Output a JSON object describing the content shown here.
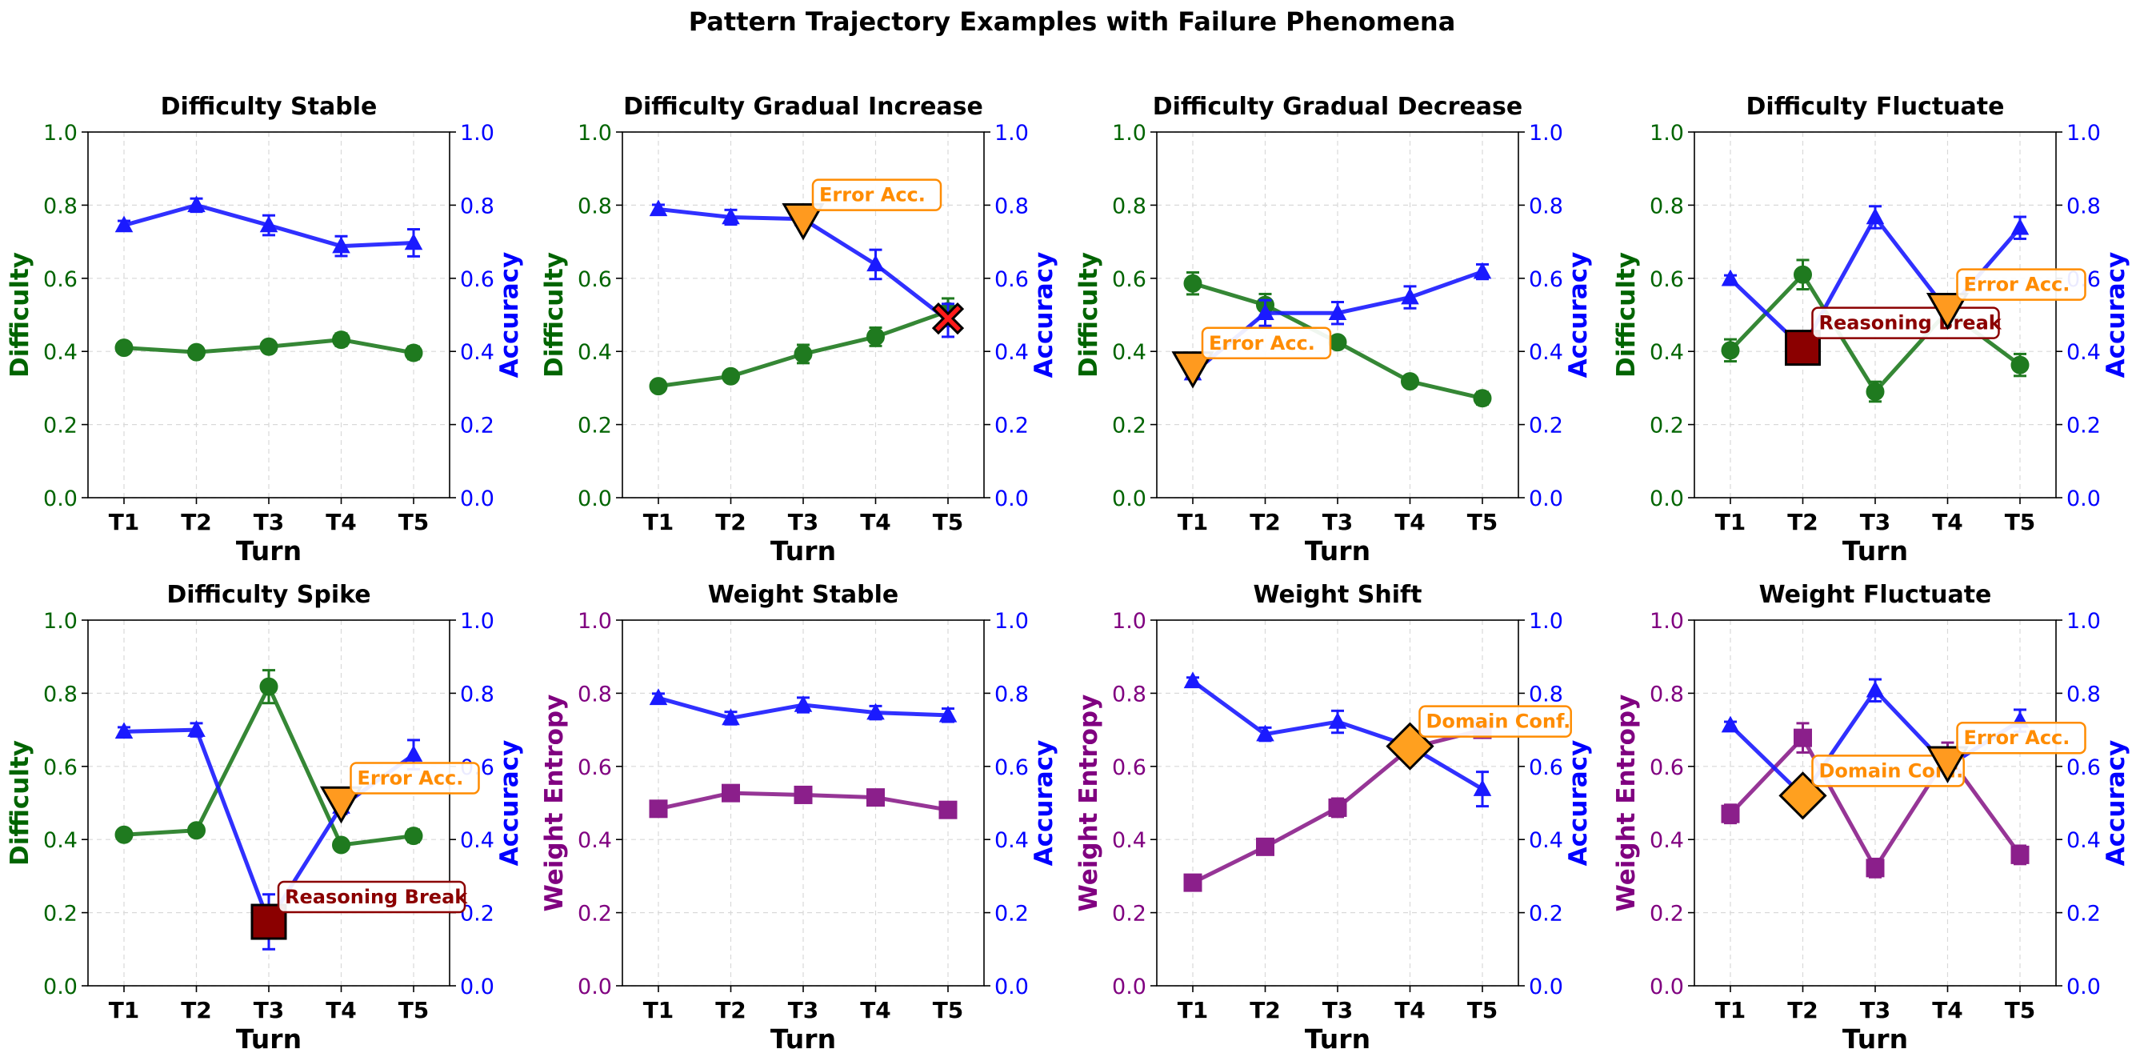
{
  "figure_title": "Pattern Trajectory Examples with Failure Phenomena",
  "colors": {
    "difficulty": "#1f7a1f",
    "difficulty_axis": "#006400",
    "weight_entropy": "#8b1f8b",
    "weight_axis": "#800080",
    "accuracy": "#1a1aff",
    "accuracy_axis": "#0000ff",
    "error_acc_marker": "#ff9a1f",
    "error_acc_text": "#ff8c00",
    "reasoning_break_marker": "#8b0000",
    "reasoning_break_text": "#8b0000",
    "domain_conf_marker": "#ffa01f",
    "domain_conf_text": "#ff8c00",
    "red_x": "#ff1a1a",
    "grid": "#d9d9d9"
  },
  "chart_data": [
    {
      "type": "line",
      "title": "Difficulty Stable",
      "categories": [
        "T1",
        "T2",
        "T3",
        "T4",
        "T5"
      ],
      "xlabel": "Turn",
      "ylabel_left": "Difficulty",
      "ylabel_right": "Accuracy",
      "left_kind": "difficulty",
      "ylim": [
        0,
        1
      ],
      "yticks": [
        "0.0",
        "0.2",
        "0.4",
        "0.6",
        "0.8",
        "1.0"
      ],
      "grid": true,
      "series": [
        {
          "axis": "left",
          "marker": "circle",
          "values": [
            0.41,
            0.398,
            0.413,
            0.432,
            0.396
          ],
          "errors": [
            0.015,
            0.012,
            0.015,
            0.017,
            0.017
          ]
        },
        {
          "axis": "right",
          "marker": "triangle",
          "values": [
            0.745,
            0.8,
            0.745,
            0.688,
            0.697
          ],
          "errors": [
            0.012,
            0.018,
            0.027,
            0.027,
            0.037
          ]
        }
      ],
      "events": []
    },
    {
      "type": "line",
      "title": "Difficulty Gradual Increase",
      "categories": [
        "T1",
        "T2",
        "T3",
        "T4",
        "T5"
      ],
      "xlabel": "Turn",
      "ylabel_left": "Difficulty",
      "ylabel_right": "Accuracy",
      "left_kind": "difficulty",
      "ylim": [
        0,
        1
      ],
      "yticks": [
        "0.0",
        "0.2",
        "0.4",
        "0.6",
        "0.8",
        "1.0"
      ],
      "grid": true,
      "series": [
        {
          "axis": "left",
          "marker": "circle",
          "values": [
            0.305,
            0.332,
            0.393,
            0.44,
            0.51
          ],
          "errors": [
            0.015,
            0.015,
            0.025,
            0.025,
            0.035
          ]
        },
        {
          "axis": "right",
          "marker": "triangle",
          "values": [
            0.789,
            0.767,
            0.762,
            0.638,
            0.485
          ],
          "errors": [
            0.012,
            0.02,
            0.015,
            0.04,
            0.045
          ]
        }
      ],
      "events": [
        {
          "kind": "error_acc",
          "marker": "triangle-down",
          "turn": 3,
          "y": 0.76,
          "label": "Error Acc."
        },
        {
          "kind": "red_x",
          "marker": "x",
          "turn": 5,
          "y": 0.49,
          "label": ""
        }
      ]
    },
    {
      "type": "line",
      "title": "Difficulty Gradual Decrease",
      "categories": [
        "T1",
        "T2",
        "T3",
        "T4",
        "T5"
      ],
      "xlabel": "Turn",
      "ylabel_left": "Difficulty",
      "ylabel_right": "Accuracy",
      "left_kind": "difficulty",
      "ylim": [
        0,
        1
      ],
      "yticks": [
        "0.0",
        "0.2",
        "0.4",
        "0.6",
        "0.8",
        "1.0"
      ],
      "grid": true,
      "series": [
        {
          "axis": "left",
          "marker": "circle",
          "values": [
            0.586,
            0.527,
            0.425,
            0.318,
            0.272
          ],
          "errors": [
            0.03,
            0.03,
            0.015,
            0.015,
            0.017
          ]
        },
        {
          "axis": "right",
          "marker": "triangle",
          "values": [
            0.34,
            0.505,
            0.505,
            0.548,
            0.618
          ],
          "errors": [
            0.015,
            0.035,
            0.03,
            0.03,
            0.02
          ]
        }
      ],
      "events": [
        {
          "kind": "error_acc",
          "marker": "triangle-down",
          "turn": 1,
          "y": 0.355,
          "label": "Error Acc."
        }
      ]
    },
    {
      "type": "line",
      "title": "Difficulty Fluctuate",
      "categories": [
        "T1",
        "T2",
        "T3",
        "T4",
        "T5"
      ],
      "xlabel": "Turn",
      "ylabel_left": "Difficulty",
      "ylabel_right": "Accuracy",
      "left_kind": "difficulty",
      "ylim": [
        0,
        1
      ],
      "yticks": [
        "0.0",
        "0.2",
        "0.4",
        "0.6",
        "0.8",
        "1.0"
      ],
      "grid": true,
      "series": [
        {
          "axis": "left",
          "marker": "circle",
          "values": [
            0.403,
            0.61,
            0.29,
            0.51,
            0.363
          ],
          "errors": [
            0.03,
            0.04,
            0.027,
            0.02,
            0.03
          ]
        },
        {
          "axis": "right",
          "marker": "triangle",
          "values": [
            0.598,
            0.41,
            0.767,
            0.51,
            0.738
          ],
          "errors": [
            0.01,
            0.02,
            0.03,
            0.02,
            0.03
          ]
        }
      ],
      "events": [
        {
          "kind": "reasoning_break",
          "marker": "square",
          "turn": 2,
          "y": 0.41,
          "label": "Reasoning Break"
        },
        {
          "kind": "error_acc",
          "marker": "triangle-down",
          "turn": 4,
          "y": 0.515,
          "label": "Error Acc."
        }
      ]
    },
    {
      "type": "line",
      "title": "Difficulty Spike",
      "categories": [
        "T1",
        "T2",
        "T3",
        "T4",
        "T5"
      ],
      "xlabel": "Turn",
      "ylabel_left": "Difficulty",
      "ylabel_right": "Accuracy",
      "left_kind": "difficulty",
      "ylim": [
        0,
        1
      ],
      "yticks": [
        "0.0",
        "0.2",
        "0.4",
        "0.6",
        "0.8",
        "1.0"
      ],
      "grid": true,
      "series": [
        {
          "axis": "left",
          "marker": "circle",
          "values": [
            0.413,
            0.425,
            0.818,
            0.385,
            0.41
          ],
          "errors": [
            0.015,
            0.015,
            0.045,
            0.015,
            0.017
          ]
        },
        {
          "axis": "right",
          "marker": "triangle",
          "values": [
            0.695,
            0.7,
            0.175,
            0.49,
            0.632
          ],
          "errors": [
            0.012,
            0.018,
            0.075,
            0.02,
            0.04
          ]
        }
      ],
      "events": [
        {
          "kind": "reasoning_break",
          "marker": "square",
          "turn": 3,
          "y": 0.175,
          "label": "Reasoning Break"
        },
        {
          "kind": "error_acc",
          "marker": "triangle-down",
          "turn": 4,
          "y": 0.5,
          "label": "Error Acc."
        }
      ]
    },
    {
      "type": "line",
      "title": "Weight Stable",
      "categories": [
        "T1",
        "T2",
        "T3",
        "T4",
        "T5"
      ],
      "xlabel": "Turn",
      "ylabel_left": "Weight Entropy",
      "ylabel_right": "Accuracy",
      "left_kind": "weight_entropy",
      "ylim": [
        0,
        1
      ],
      "yticks": [
        "0.0",
        "0.2",
        "0.4",
        "0.6",
        "0.8",
        "1.0"
      ],
      "grid": true,
      "series": [
        {
          "axis": "left",
          "marker": "square",
          "values": [
            0.484,
            0.527,
            0.522,
            0.515,
            0.481
          ],
          "errors": [
            0.015,
            0.015,
            0.015,
            0.015,
            0.015
          ]
        },
        {
          "axis": "right",
          "marker": "triangle",
          "values": [
            0.787,
            0.732,
            0.768,
            0.747,
            0.74
          ],
          "errors": [
            0.012,
            0.017,
            0.02,
            0.018,
            0.018
          ]
        }
      ],
      "events": []
    },
    {
      "type": "line",
      "title": "Weight Shift",
      "categories": [
        "T1",
        "T2",
        "T3",
        "T4",
        "T5"
      ],
      "xlabel": "Turn",
      "ylabel_left": "Weight Entropy",
      "ylabel_right": "Accuracy",
      "left_kind": "weight_entropy",
      "ylim": [
        0,
        1
      ],
      "yticks": [
        "0.0",
        "0.2",
        "0.4",
        "0.6",
        "0.8",
        "1.0"
      ],
      "grid": true,
      "series": [
        {
          "axis": "left",
          "marker": "square",
          "values": [
            0.282,
            0.38,
            0.487,
            0.65,
            0.7
          ],
          "errors": [
            0.012,
            0.012,
            0.025,
            0.02,
            0.015
          ]
        },
        {
          "axis": "right",
          "marker": "triangle",
          "values": [
            0.833,
            0.688,
            0.722,
            0.655,
            0.538
          ],
          "errors": [
            0.01,
            0.018,
            0.03,
            0.02,
            0.047
          ]
        }
      ],
      "events": [
        {
          "kind": "domain_conf",
          "marker": "diamond",
          "turn": 4,
          "y": 0.655,
          "label": "Domain Conf."
        }
      ]
    },
    {
      "type": "line",
      "title": "Weight Fluctuate",
      "categories": [
        "T1",
        "T2",
        "T3",
        "T4",
        "T5"
      ],
      "xlabel": "Turn",
      "ylabel_left": "Weight Entropy",
      "ylabel_right": "Accuracy",
      "left_kind": "weight_entropy",
      "ylim": [
        0,
        1
      ],
      "yticks": [
        "0.0",
        "0.2",
        "0.4",
        "0.6",
        "0.8",
        "1.0"
      ],
      "grid": true,
      "series": [
        {
          "axis": "left",
          "marker": "square",
          "values": [
            0.47,
            0.678,
            0.322,
            0.63,
            0.358
          ],
          "errors": [
            0.025,
            0.04,
            0.025,
            0.035,
            0.025
          ]
        },
        {
          "axis": "right",
          "marker": "triangle",
          "values": [
            0.712,
            0.52,
            0.808,
            0.6,
            0.725
          ],
          "errors": [
            0.01,
            0.02,
            0.03,
            0.02,
            0.03
          ]
        }
      ],
      "events": [
        {
          "kind": "domain_conf",
          "marker": "diamond",
          "turn": 2,
          "y": 0.52,
          "label": "Domain Conf."
        },
        {
          "kind": "error_acc",
          "marker": "triangle-down",
          "turn": 4,
          "y": 0.61,
          "label": "Error Acc."
        }
      ]
    }
  ]
}
